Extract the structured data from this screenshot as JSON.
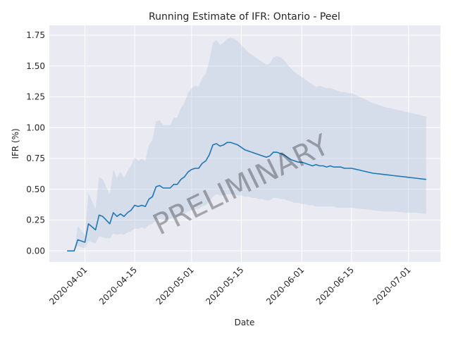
{
  "chart_data": {
    "type": "line",
    "title": "Running Estimate of IFR: Ontario - Peel",
    "xlabel": "Date",
    "ylabel": "IFR (%)",
    "watermark": "PRELIMINARY",
    "x_axis_type": "date",
    "xlim": [
      "2020-03-22",
      "2020-07-10"
    ],
    "ylim": [
      -0.09,
      1.83
    ],
    "grid": true,
    "legend": "none",
    "x_ticks": [
      "2020-04-01",
      "2020-04-15",
      "2020-05-01",
      "2020-05-15",
      "2020-06-01",
      "2020-06-15",
      "2020-07-01"
    ],
    "y_ticks": [
      0.0,
      0.25,
      0.5,
      0.75,
      1.0,
      1.25,
      1.5,
      1.75
    ],
    "y_tick_labels": [
      "0.00",
      "0.25",
      "0.50",
      "0.75",
      "1.00",
      "1.25",
      "1.50",
      "1.75"
    ],
    "colors": {
      "line": "#1f77b4",
      "band": "#b0c4de",
      "background": "#eaeaf2",
      "grid": "#ffffff"
    },
    "series": [
      {
        "x": [
          "2020-03-27",
          "2020-03-29",
          "2020-03-30",
          "2020-04-01",
          "2020-04-02",
          "2020-04-04",
          "2020-04-05",
          "2020-04-06",
          "2020-04-08",
          "2020-04-09",
          "2020-04-10",
          "2020-04-11",
          "2020-04-12",
          "2020-04-13",
          "2020-04-14",
          "2020-04-15",
          "2020-04-16",
          "2020-04-17",
          "2020-04-18",
          "2020-04-19",
          "2020-04-20",
          "2020-04-21",
          "2020-04-22",
          "2020-04-23",
          "2020-04-24",
          "2020-04-25",
          "2020-04-26",
          "2020-04-27",
          "2020-04-28",
          "2020-04-29",
          "2020-04-30",
          "2020-05-01",
          "2020-05-02",
          "2020-05-03",
          "2020-05-04",
          "2020-05-05",
          "2020-05-06",
          "2020-05-07",
          "2020-05-08",
          "2020-05-09",
          "2020-05-10",
          "2020-05-11",
          "2020-05-12",
          "2020-05-13",
          "2020-05-14",
          "2020-05-15",
          "2020-05-16",
          "2020-05-17",
          "2020-05-18",
          "2020-05-19",
          "2020-05-20",
          "2020-05-21",
          "2020-05-22",
          "2020-05-23",
          "2020-05-24",
          "2020-05-25",
          "2020-05-26",
          "2020-05-27",
          "2020-05-28",
          "2020-05-29",
          "2020-05-30",
          "2020-05-31",
          "2020-06-01",
          "2020-06-02",
          "2020-06-03",
          "2020-06-04",
          "2020-06-05",
          "2020-06-06",
          "2020-06-07",
          "2020-06-08",
          "2020-06-09",
          "2020-06-10",
          "2020-06-11",
          "2020-06-12",
          "2020-06-13",
          "2020-06-14",
          "2020-06-15",
          "2020-06-18",
          "2020-06-21",
          "2020-06-24",
          "2020-06-27",
          "2020-06-30",
          "2020-07-03",
          "2020-07-06"
        ],
        "y": [
          0.0,
          0.0,
          0.09,
          0.07,
          0.22,
          0.17,
          0.29,
          0.28,
          0.22,
          0.31,
          0.28,
          0.3,
          0.28,
          0.31,
          0.33,
          0.37,
          0.36,
          0.37,
          0.36,
          0.42,
          0.44,
          0.52,
          0.53,
          0.51,
          0.51,
          0.51,
          0.54,
          0.54,
          0.58,
          0.6,
          0.64,
          0.66,
          0.67,
          0.67,
          0.71,
          0.73,
          0.78,
          0.86,
          0.87,
          0.85,
          0.86,
          0.88,
          0.88,
          0.87,
          0.86,
          0.84,
          0.82,
          0.81,
          0.8,
          0.79,
          0.78,
          0.77,
          0.76,
          0.77,
          0.8,
          0.8,
          0.79,
          0.78,
          0.76,
          0.74,
          0.73,
          0.72,
          0.72,
          0.71,
          0.7,
          0.69,
          0.7,
          0.69,
          0.69,
          0.68,
          0.69,
          0.68,
          0.68,
          0.68,
          0.67,
          0.67,
          0.67,
          0.65,
          0.63,
          0.62,
          0.61,
          0.6,
          0.59,
          0.58
        ],
        "y_lower": [
          0.0,
          0.0,
          0.04,
          0.02,
          0.08,
          0.06,
          0.12,
          0.11,
          0.1,
          0.14,
          0.13,
          0.14,
          0.13,
          0.15,
          0.16,
          0.18,
          0.18,
          0.19,
          0.18,
          0.21,
          0.22,
          0.25,
          0.26,
          0.25,
          0.25,
          0.26,
          0.27,
          0.27,
          0.29,
          0.3,
          0.32,
          0.33,
          0.34,
          0.34,
          0.36,
          0.37,
          0.4,
          0.44,
          0.46,
          0.45,
          0.45,
          0.46,
          0.46,
          0.46,
          0.45,
          0.45,
          0.44,
          0.44,
          0.43,
          0.43,
          0.42,
          0.42,
          0.41,
          0.41,
          0.43,
          0.43,
          0.42,
          0.42,
          0.41,
          0.4,
          0.39,
          0.39,
          0.38,
          0.38,
          0.37,
          0.37,
          0.36,
          0.36,
          0.36,
          0.36,
          0.36,
          0.36,
          0.35,
          0.35,
          0.35,
          0.35,
          0.35,
          0.34,
          0.33,
          0.32,
          0.32,
          0.31,
          0.31,
          0.3
        ],
        "y_upper": [
          0.0,
          0.0,
          0.2,
          0.13,
          0.47,
          0.34,
          0.6,
          0.58,
          0.46,
          0.66,
          0.59,
          0.64,
          0.59,
          0.65,
          0.69,
          0.76,
          0.73,
          0.75,
          0.73,
          0.86,
          0.9,
          1.05,
          1.06,
          1.02,
          1.02,
          1.02,
          1.08,
          1.08,
          1.16,
          1.2,
          1.28,
          1.32,
          1.34,
          1.33,
          1.4,
          1.44,
          1.54,
          1.69,
          1.71,
          1.67,
          1.69,
          1.72,
          1.73,
          1.72,
          1.7,
          1.67,
          1.64,
          1.61,
          1.59,
          1.57,
          1.55,
          1.53,
          1.51,
          1.52,
          1.57,
          1.58,
          1.57,
          1.55,
          1.51,
          1.48,
          1.45,
          1.43,
          1.41,
          1.39,
          1.37,
          1.35,
          1.33,
          1.34,
          1.33,
          1.32,
          1.32,
          1.31,
          1.3,
          1.29,
          1.29,
          1.28,
          1.28,
          1.24,
          1.2,
          1.17,
          1.15,
          1.13,
          1.11,
          1.09
        ]
      }
    ]
  }
}
